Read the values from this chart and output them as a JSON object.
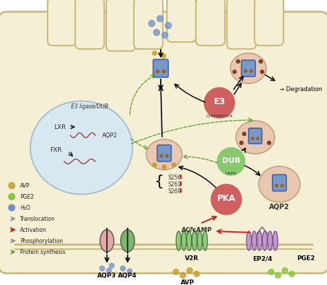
{
  "bg_color": "#FFFFFF",
  "cell_color": "#F5F0D5",
  "cell_membrane_color": "#C8B87A",
  "nucleus_color": "#D8E8F0",
  "nucleus_border": "#A8C0D0",
  "vesicle_color": "#E8C8B0",
  "vesicle_border": "#C0A080",
  "e3_color": "#D06060",
  "e3_text": "E3",
  "e3_sub": "CHIP/NEDD4",
  "dub_color": "#88C870",
  "dub_text": "DUB",
  "dub_sub": "USP4",
  "pka_color": "#D06060",
  "pka_text": "PKA",
  "degradation_text": "→ Degradation",
  "ac_text": "AC/cAMP",
  "v2r_text": "V2R",
  "ep24_text": "EP2/4",
  "aqp3_text": "AQP3",
  "aqp4_text": "AQP4",
  "avp_text": "AVP",
  "pge2_text": "PGE2",
  "aqp2_text": "AQP2",
  "s256_text": "S256",
  "s261_text": "S261",
  "s269_text": "S269",
  "lxr_text": "LXR",
  "fxr_text": "FXR",
  "aqp2_nucleus_text": "AQP2",
  "e3_ligase_text": "E3 ligase/DUB",
  "aqp_color_pink": "#E8A8A8",
  "aqp_color_green": "#78B868",
  "aqp_color_blue": "#7898C8",
  "legend_items": [
    {
      "label": "AVP",
      "color": "#C8A840",
      "type": "circle"
    },
    {
      "label": "PGE2",
      "color": "#88C840",
      "type": "circle"
    },
    {
      "label": "H₂O",
      "color": "#7090C8",
      "type": "circle"
    },
    {
      "label": "Translocation",
      "color": "#909090",
      "type": "arrow_gray"
    },
    {
      "label": "Activation",
      "color": "#CC2020",
      "type": "arrow_red"
    },
    {
      "label": "Phosphorylation",
      "color": "#808080",
      "type": "arrow_gray"
    },
    {
      "label": "Protein synthesis",
      "color": "#669933",
      "type": "dashed"
    }
  ]
}
